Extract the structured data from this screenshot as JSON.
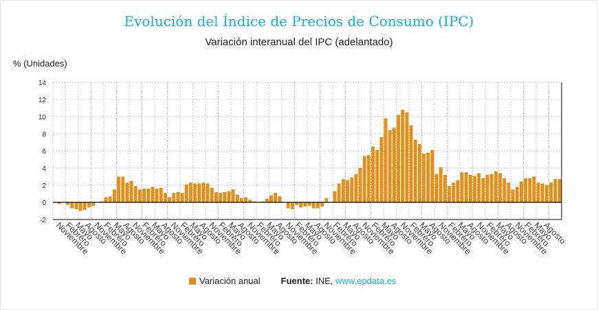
{
  "header": {
    "title": "Evolución del Índice de Precios de Consumo (IPC)",
    "subtitle": "Variación interanual del IPC (adelantado)",
    "ylabel": "% (Unidades)"
  },
  "legend": {
    "series_label": "Variación anual",
    "source_label": "Fuente:",
    "source_name": "INE,",
    "source_link": "www.epdata.es"
  },
  "colors": {
    "bar": "#e28f1c",
    "grid": "#c8c8c8",
    "axis": "#000000",
    "title": "#17b3c9"
  },
  "chart_data": {
    "type": "bar",
    "title": "Evolución del Índice de Precios de Consumo (IPC)",
    "subtitle": "Variación interanual del IPC (adelantado)",
    "ylabel": "% (Unidades)",
    "ylim": [
      -2,
      14
    ],
    "yticks": [
      -2,
      0,
      2,
      4,
      6,
      8,
      10,
      12,
      14
    ],
    "grid": true,
    "legend_position": "bottom",
    "tick_labels": [
      "Noviembre",
      "Febrero",
      "Mayo",
      "Agosto",
      "Noviembre",
      "Febrero",
      "Mayo",
      "Agosto",
      "Noviembre",
      "Febrero",
      "Mayo",
      "Agosto",
      "Noviembre",
      "Febrero",
      "Mayo",
      "Agosto",
      "Noviembre",
      "Febrero",
      "Mayo",
      "Agosto",
      "Noviembre",
      "Febrero",
      "Mayo",
      "Agosto",
      "Noviembre",
      "Febrero",
      "Mayo",
      "Agosto",
      "Noviembre",
      "Febrero",
      "Mayo",
      "Agosto",
      "Noviembre",
      "Febrero",
      "Mayo",
      "Agosto",
      "Noviembre",
      "Febrero",
      "Mayo",
      "Agosto",
      "Noviembre",
      "Febrero",
      "Mayo",
      "Agosto",
      "Noviembre",
      "Febrero",
      "Mayo",
      "Agosto",
      "Noviembre",
      "Febrero",
      "Mayo",
      "Agosto"
    ],
    "series": [
      {
        "name": "Variación anual",
        "values": [
          0.0,
          -0.2,
          0.0,
          -0.3,
          -0.7,
          -0.8,
          -1.0,
          -0.9,
          -0.6,
          -0.4,
          0.0,
          0.1,
          0.6,
          0.7,
          1.5,
          3.0,
          3.0,
          2.3,
          2.5,
          1.9,
          1.5,
          1.6,
          1.6,
          1.8,
          1.6,
          1.7,
          1.1,
          0.6,
          1.1,
          1.2,
          1.1,
          2.1,
          2.3,
          2.2,
          2.2,
          2.3,
          2.2,
          1.7,
          1.2,
          1.1,
          1.2,
          1.3,
          1.5,
          0.9,
          0.5,
          0.6,
          0.3,
          0.1,
          0.0,
          0.1,
          0.4,
          0.8,
          1.1,
          0.7,
          0.0,
          -0.7,
          -0.8,
          -0.3,
          -0.6,
          -0.5,
          -0.4,
          -0.7,
          -0.7,
          -0.5,
          0.5,
          0.0,
          1.3,
          2.2,
          2.7,
          2.6,
          2.9,
          3.3,
          4.0,
          5.4,
          5.5,
          6.5,
          6.1,
          7.6,
          9.8,
          8.4,
          8.7,
          10.2,
          10.8,
          10.5,
          9.0,
          7.3,
          6.8,
          5.7,
          5.8,
          6.1,
          3.3,
          4.1,
          3.2,
          1.9,
          2.3,
          2.6,
          3.5,
          3.5,
          3.2,
          3.1,
          3.4,
          2.8,
          3.2,
          3.3,
          3.6,
          3.4,
          2.8,
          2.3,
          1.5,
          1.8,
          2.4,
          2.8,
          2.8,
          3.0,
          2.3,
          2.2,
          2.0,
          2.3,
          2.7,
          2.7
        ]
      }
    ]
  }
}
